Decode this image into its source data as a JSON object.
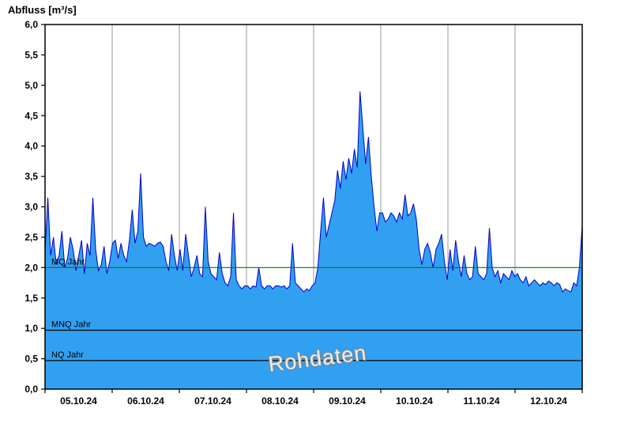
{
  "title": "Abfluss [m³/s]",
  "watermark": "Rohdaten",
  "chart_data": {
    "type": "area",
    "title": "Abfluss [m³/s]",
    "ylabel": "Abfluss [m³/s]",
    "ylim": [
      0,
      6
    ],
    "y_tick_step": 0.5,
    "y_ticks": [
      "6,0",
      "5,5",
      "5,0",
      "4,5",
      "4,0",
      "3,5",
      "3,0",
      "2,5",
      "2,0",
      "1,5",
      "1,0",
      "0,5",
      "0,0"
    ],
    "x_labels": [
      "05.10.24",
      "06.10.24",
      "07.10.24",
      "08.10.24",
      "09.10.24",
      "10.10.24",
      "11.10.24",
      "12.10.24"
    ],
    "points_per_day": 24,
    "grid": "vertical-day-boundaries",
    "legend_position": "none",
    "values": [
      2.25,
      3.15,
      2.2,
      2.5,
      2.05,
      2.2,
      2.6,
      2.0,
      2.15,
      2.5,
      2.3,
      1.95,
      2.2,
      2.45,
      1.9,
      2.4,
      2.2,
      3.15,
      2.3,
      1.95,
      2.05,
      2.35,
      1.9,
      2.1,
      2.4,
      2.45,
      2.15,
      2.4,
      2.2,
      2.1,
      2.45,
      2.95,
      2.4,
      2.6,
      3.55,
      2.5,
      2.35,
      2.4,
      2.38,
      2.35,
      2.4,
      2.42,
      2.35,
      2.1,
      1.95,
      2.55,
      2.2,
      1.95,
      2.3,
      1.95,
      2.55,
      2.2,
      1.85,
      2.0,
      2.2,
      1.9,
      1.85,
      3.0,
      2.1,
      1.9,
      1.85,
      1.8,
      2.25,
      1.9,
      1.75,
      1.7,
      1.85,
      2.9,
      1.8,
      1.7,
      1.65,
      1.7,
      1.7,
      1.65,
      1.7,
      1.68,
      2.0,
      1.7,
      1.65,
      1.7,
      1.7,
      1.65,
      1.7,
      1.7,
      1.68,
      1.7,
      1.65,
      1.7,
      2.4,
      1.75,
      1.7,
      1.65,
      1.6,
      1.65,
      1.62,
      1.7,
      1.75,
      2.0,
      2.6,
      3.15,
      2.5,
      2.7,
      2.9,
      3.1,
      3.6,
      3.3,
      3.75,
      3.45,
      3.8,
      3.55,
      3.95,
      3.65,
      4.9,
      4.3,
      3.7,
      4.15,
      3.5,
      3.0,
      2.6,
      2.9,
      2.9,
      2.75,
      2.8,
      2.9,
      2.85,
      2.75,
      2.9,
      2.8,
      3.2,
      2.85,
      2.9,
      3.05,
      2.8,
      2.3,
      2.05,
      2.3,
      2.4,
      2.25,
      2.0,
      2.3,
      2.4,
      2.55,
      2.1,
      1.8,
      2.3,
      1.95,
      2.45,
      2.1,
      1.85,
      2.2,
      1.9,
      1.8,
      1.85,
      2.35,
      1.9,
      1.85,
      1.8,
      1.9,
      2.65,
      2.0,
      1.85,
      1.95,
      1.75,
      1.9,
      1.85,
      1.8,
      1.95,
      1.85,
      1.9,
      1.8,
      1.75,
      1.85,
      1.7,
      1.75,
      1.8,
      1.75,
      1.7,
      1.75,
      1.72,
      1.78,
      1.75,
      1.7,
      1.75,
      1.72,
      1.6,
      1.65,
      1.62,
      1.6,
      1.75,
      1.7,
      2.0,
      2.7
    ],
    "reference_lines": [
      {
        "label": "MQ Jahr",
        "value": 2.0,
        "color": "#007a00"
      },
      {
        "label": "MNQ Jahr",
        "value": 0.97,
        "color": "#000000"
      },
      {
        "label": "NQ Jahr",
        "value": 0.47,
        "color": "#000000"
      }
    ],
    "colors": {
      "fill": "#32A0F0",
      "line": "#0000CC",
      "grid": "#999999",
      "frame": "#000000",
      "text": "#000000"
    }
  }
}
